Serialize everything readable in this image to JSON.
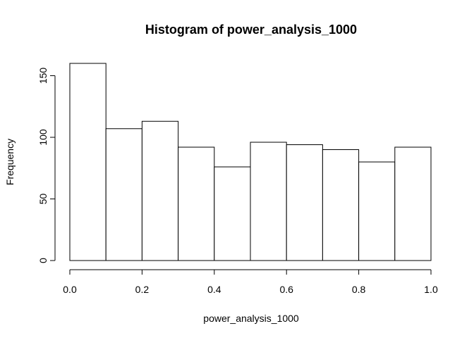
{
  "chart_data": {
    "type": "bar",
    "title": "Histogram of power_analysis_1000",
    "xlabel": "power_analysis_1000",
    "ylabel": "Frequency",
    "bins": [
      {
        "x0": 0.0,
        "x1": 0.1,
        "count": 160
      },
      {
        "x0": 0.1,
        "x1": 0.2,
        "count": 107
      },
      {
        "x0": 0.2,
        "x1": 0.3,
        "count": 113
      },
      {
        "x0": 0.3,
        "x1": 0.4,
        "count": 92
      },
      {
        "x0": 0.4,
        "x1": 0.5,
        "count": 76
      },
      {
        "x0": 0.5,
        "x1": 0.6,
        "count": 96
      },
      {
        "x0": 0.6,
        "x1": 0.7,
        "count": 94
      },
      {
        "x0": 0.7,
        "x1": 0.8,
        "count": 90
      },
      {
        "x0": 0.8,
        "x1": 0.9,
        "count": 80
      },
      {
        "x0": 0.9,
        "x1": 1.0,
        "count": 92
      }
    ],
    "xlim": [
      0.0,
      1.0
    ],
    "ylim": [
      0,
      160
    ],
    "x_ticks": [
      0.0,
      0.2,
      0.4,
      0.6,
      0.8,
      1.0
    ],
    "x_tick_labels": [
      "0.0",
      "0.2",
      "0.4",
      "0.6",
      "0.8",
      "1.0"
    ],
    "y_ticks": [
      0,
      50,
      100,
      150
    ],
    "y_tick_labels": [
      "0",
      "50",
      "100",
      "150"
    ],
    "bar_fill": "#ffffff",
    "bar_stroke": "#000000",
    "grid": false,
    "legend": "none"
  }
}
